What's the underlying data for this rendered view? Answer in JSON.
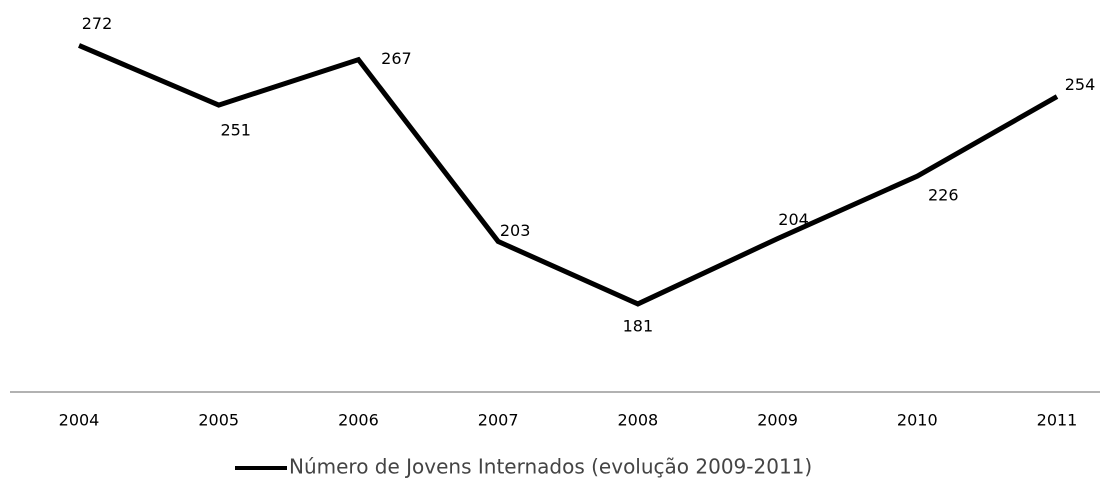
{
  "chart_data": {
    "type": "line",
    "categories": [
      "2004",
      "2005",
      "2006",
      "2007",
      "2008",
      "2009",
      "2010",
      "2011"
    ],
    "series": [
      {
        "name": "Número de Jovens Internados (evolução 2009-2011)",
        "color": "#000000",
        "values": [
          272,
          251,
          267,
          203,
          181,
          204,
          226,
          254
        ]
      }
    ],
    "ylim": [
      150,
      288
    ]
  }
}
